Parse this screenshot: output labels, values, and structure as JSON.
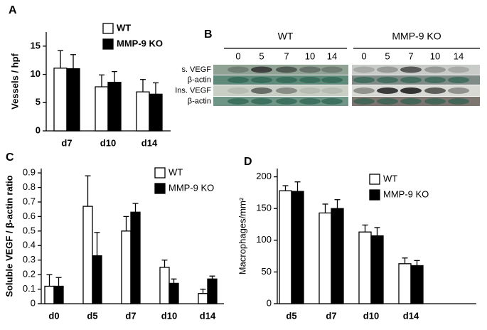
{
  "chart_data": [
    {
      "type": "bar",
      "panel_label": "A",
      "y_label": "Vessels / hpf",
      "categories": [
        "d7",
        "d10",
        "d14"
      ],
      "series": [
        {
          "name": "WT",
          "color": "#ffffff",
          "values": [
            11.1,
            7.8,
            6.9
          ],
          "errors": [
            3.1,
            2.1,
            2.2
          ]
        },
        {
          "name": "MMP-9 KO",
          "color": "#000000",
          "values": [
            11.0,
            8.6,
            6.5
          ],
          "errors": [
            2.5,
            1.9,
            2.0
          ]
        }
      ],
      "ylim": [
        0,
        17.5
      ],
      "yticks": [
        0,
        5,
        10,
        15
      ]
    },
    {
      "type": "bar",
      "panel_label": "C",
      "y_label": "Soluble VEGF / β-actin ratio",
      "categories": [
        "d0",
        "d5",
        "d7",
        "d10",
        "d14"
      ],
      "series": [
        {
          "name": "WT",
          "color": "#ffffff",
          "values": [
            0.12,
            0.67,
            0.5,
            0.25,
            0.07
          ],
          "errors": [
            0.08,
            0.21,
            0.1,
            0.05,
            0.03
          ]
        },
        {
          "name": "MMP-9 KO",
          "color": "#000000",
          "values": [
            0.12,
            0.33,
            0.63,
            0.14,
            0.17
          ],
          "errors": [
            0.06,
            0.16,
            0.06,
            0.03,
            0.02
          ]
        }
      ],
      "ylim": [
        0,
        0.93
      ],
      "yticks": [
        0,
        0.1,
        0.2,
        0.3,
        0.4,
        0.5,
        0.6,
        0.7,
        0.8,
        0.9
      ]
    },
    {
      "type": "bar",
      "panel_label": "D",
      "y_label": "Macrophages/mm²",
      "categories": [
        "d5",
        "d7",
        "d10",
        "d14"
      ],
      "series": [
        {
          "name": "WT",
          "color": "#ffffff",
          "values": [
            178,
            143,
            113,
            63
          ],
          "errors": [
            8,
            14,
            11,
            9
          ]
        },
        {
          "name": "MMP-9 KO",
          "color": "#000000",
          "values": [
            177,
            150,
            107,
            60
          ],
          "errors": [
            15,
            14,
            13,
            8
          ]
        }
      ],
      "ylim": [
        0,
        213
      ],
      "yticks": [
        0,
        50,
        100,
        150,
        200
      ]
    }
  ],
  "blot": {
    "panel_label": "B",
    "groups": [
      "WT",
      "MMP-9 KO"
    ],
    "lanes": [
      "0",
      "5",
      "7",
      "10",
      "14",
      "0",
      "5",
      "7",
      "10",
      "14"
    ],
    "rows": [
      "s. VEGF",
      "β-actin",
      "Ins. VEGF",
      "β-actin"
    ]
  }
}
